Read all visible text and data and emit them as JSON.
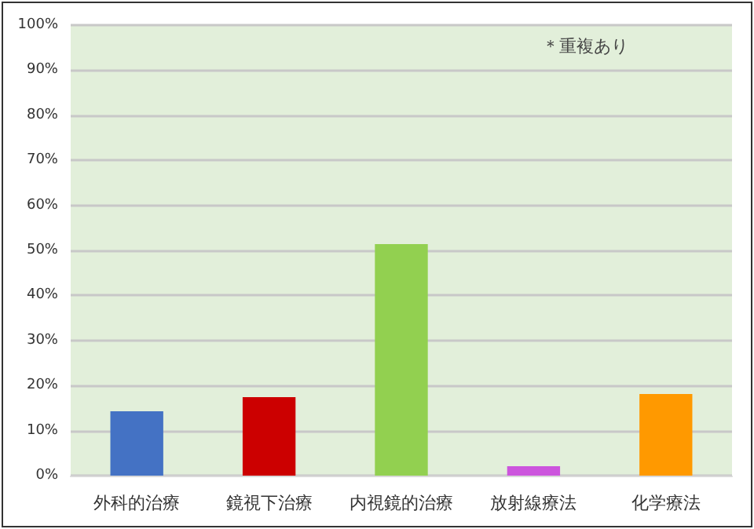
{
  "chart_data": {
    "type": "bar",
    "categories": [
      "外科的治療",
      "鏡視下治療",
      "内視鏡的治療",
      "放射線療法",
      "化学療法"
    ],
    "values": [
      14.3,
      17.4,
      51.4,
      2.1,
      18.1
    ],
    "colors": [
      "#4472c4",
      "#cc0000",
      "#92d050",
      "#cc55dd",
      "#ff9900"
    ],
    "ylim": [
      0,
      100
    ],
    "yticks": [
      {
        "value": 0,
        "label": "0%"
      },
      {
        "value": 10,
        "label": "10%"
      },
      {
        "value": 20,
        "label": "20%"
      },
      {
        "value": 30,
        "label": "30%"
      },
      {
        "value": 40,
        "label": "40%"
      },
      {
        "value": 50,
        "label": "50%"
      },
      {
        "value": 60,
        "label": "60%"
      },
      {
        "value": 70,
        "label": "70%"
      },
      {
        "value": 80,
        "label": "80%"
      },
      {
        "value": 90,
        "label": "90%"
      },
      {
        "value": 100,
        "label": "100%"
      }
    ],
    "grid": "y",
    "annotations": [
      "＊重複あり"
    ]
  }
}
